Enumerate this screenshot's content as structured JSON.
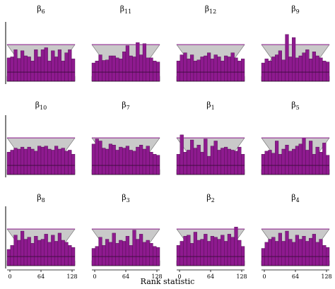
{
  "figure": {
    "xlabel": "Rank statistic"
  },
  "chart_data": [
    {
      "type": "bar",
      "title": "β6",
      "xticks": [
        0,
        64,
        128
      ],
      "bins": 20,
      "band_lower_y": 18,
      "band_upper_y": 72,
      "mid_y": 18,
      "values": [
        46,
        48,
        62,
        45,
        60,
        50,
        48,
        40,
        62,
        48,
        62,
        66,
        40,
        60,
        48,
        62,
        40,
        56,
        62,
        44
      ]
    },
    {
      "type": "bar",
      "title": "β11",
      "xticks": [
        0,
        64,
        128
      ],
      "bins": 20,
      "band_lower_y": 18,
      "band_upper_y": 72,
      "mid_y": 18,
      "values": [
        36,
        40,
        52,
        41,
        42,
        50,
        50,
        46,
        44,
        58,
        70,
        50,
        48,
        76,
        52,
        74,
        46,
        46,
        40,
        38
      ]
    },
    {
      "type": "bar",
      "title": "β12",
      "xticks": [
        0,
        64,
        128
      ],
      "bins": 20,
      "band_lower_y": 18,
      "band_upper_y": 72,
      "mid_y": 18,
      "values": [
        40,
        52,
        56,
        44,
        52,
        40,
        42,
        48,
        50,
        56,
        44,
        52,
        48,
        40,
        50,
        48,
        56,
        46,
        40,
        44
      ]
    },
    {
      "type": "bar",
      "title": "β9",
      "xticks": [
        0,
        64,
        128
      ],
      "bins": 20,
      "band_lower_y": 18,
      "band_upper_y": 72,
      "mid_y": 18,
      "values": [
        36,
        44,
        40,
        48,
        52,
        60,
        42,
        92,
        48,
        86,
        46,
        50,
        56,
        62,
        44,
        58,
        50,
        46,
        40,
        38
      ]
    },
    {
      "type": "bar",
      "title": "β10",
      "xticks": [
        0,
        64,
        128
      ],
      "bins": 20,
      "band_lower_y": 18,
      "band_upper_y": 72,
      "mid_y": 18,
      "values": [
        44,
        48,
        52,
        50,
        54,
        50,
        54,
        50,
        46,
        56,
        54,
        56,
        50,
        48,
        56,
        50,
        52,
        46,
        48,
        40
      ]
    },
    {
      "type": "bar",
      "title": "β7",
      "xticks": [
        0,
        64,
        128
      ],
      "bins": 20,
      "band_lower_y": 18,
      "band_upper_y": 72,
      "mid_y": 18,
      "values": [
        60,
        70,
        66,
        52,
        50,
        60,
        58,
        48,
        54,
        52,
        56,
        48,
        46,
        54,
        58,
        50,
        56,
        44,
        40,
        38
      ]
    },
    {
      "type": "bar",
      "title": "β1",
      "xticks": [
        0,
        64,
        128
      ],
      "bins": 20,
      "band_lower_y": 18,
      "band_upper_y": 72,
      "mid_y": 18,
      "values": [
        40,
        78,
        44,
        48,
        68,
        52,
        58,
        44,
        70,
        36,
        56,
        66,
        48,
        52,
        54,
        50,
        48,
        46,
        54,
        40
      ]
    },
    {
      "type": "bar",
      "title": "β5",
      "xticks": [
        0,
        64,
        128
      ],
      "bins": 20,
      "band_lower_y": 18,
      "band_upper_y": 72,
      "mid_y": 18,
      "values": [
        40,
        46,
        48,
        42,
        66,
        40,
        50,
        58,
        46,
        50,
        56,
        60,
        72,
        48,
        66,
        40,
        54,
        44,
        62,
        38
      ]
    },
    {
      "type": "bar",
      "title": "β8",
      "xticks": [
        0,
        64,
        128
      ],
      "bins": 20,
      "band_lower_y": 18,
      "band_upper_y": 72,
      "mid_y": 18,
      "values": [
        32,
        40,
        60,
        50,
        68,
        52,
        56,
        44,
        58,
        50,
        52,
        62,
        46,
        60,
        48,
        64,
        50,
        46,
        40,
        36
      ]
    },
    {
      "type": "bar",
      "title": "β3",
      "xticks": [
        0,
        64,
        128
      ],
      "bins": 20,
      "band_lower_y": 18,
      "band_upper_y": 72,
      "mid_y": 18,
      "values": [
        34,
        38,
        56,
        40,
        52,
        46,
        64,
        44,
        50,
        48,
        58,
        40,
        70,
        52,
        62,
        46,
        50,
        44,
        38,
        36
      ]
    },
    {
      "type": "bar",
      "title": "β2",
      "xticks": [
        0,
        64,
        128
      ],
      "bins": 20,
      "band_lower_y": 18,
      "band_upper_y": 72,
      "mid_y": 18,
      "values": [
        40,
        48,
        58,
        60,
        44,
        66,
        50,
        52,
        62,
        48,
        58,
        56,
        52,
        60,
        48,
        62,
        56,
        76,
        50,
        38
      ]
    },
    {
      "type": "bar",
      "title": "β4",
      "xticks": [
        0,
        64,
        128
      ],
      "bins": 20,
      "band_lower_y": 18,
      "band_upper_y": 72,
      "mid_y": 18,
      "values": [
        34,
        46,
        52,
        56,
        48,
        64,
        48,
        68,
        52,
        46,
        60,
        52,
        58,
        48,
        54,
        62,
        46,
        52,
        40,
        36
      ]
    }
  ],
  "colors": {
    "bar_fill": "#8e1a8f",
    "bar_edge": "#4a0d4a",
    "band": "#c9c9c9",
    "band_edge": "#6b6b6b",
    "upper_line": "#8e1a8f",
    "mid_line": "#3a0b3a"
  }
}
